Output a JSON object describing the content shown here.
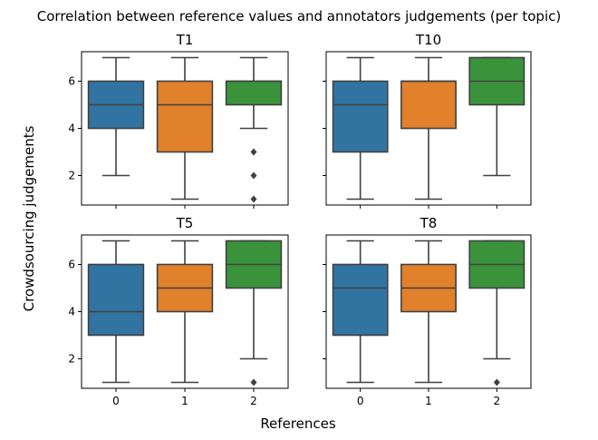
{
  "figure": {
    "title": "Correlation between reference values and annotators judgements (per topic)",
    "xlabel": "References",
    "ylabel": "Crowdsourcing judgements"
  },
  "chart_data": {
    "type": "box",
    "title": "Correlation between reference values and annotators judgements (per topic)",
    "xlabel": "References",
    "ylabel": "Crowdsourcing judgements",
    "categories": [
      "0",
      "1",
      "2"
    ],
    "colors": [
      "#3274a1",
      "#e1812c",
      "#3a923a"
    ],
    "ylim": [
      0.75,
      7.25
    ],
    "yticks": [
      2,
      4,
      6
    ],
    "grid": false,
    "panels": [
      {
        "title": "T1",
        "boxes": [
          {
            "whisker_low": 2,
            "q1": 4,
            "median": 5,
            "q3": 6,
            "whisker_high": 7,
            "outliers": []
          },
          {
            "whisker_low": 1,
            "q1": 3,
            "median": 5,
            "q3": 6,
            "whisker_high": 7,
            "outliers": []
          },
          {
            "whisker_low": 4,
            "q1": 5,
            "median": 6,
            "q3": 6,
            "whisker_high": 7,
            "outliers": [
              3,
              2,
              1
            ]
          }
        ]
      },
      {
        "title": "T10",
        "boxes": [
          {
            "whisker_low": 1,
            "q1": 3,
            "median": 5,
            "q3": 6,
            "whisker_high": 7,
            "outliers": []
          },
          {
            "whisker_low": 1,
            "q1": 4,
            "median": 6,
            "q3": 6,
            "whisker_high": 7,
            "outliers": []
          },
          {
            "whisker_low": 2,
            "q1": 5,
            "median": 6,
            "q3": 7,
            "whisker_high": 7,
            "outliers": []
          }
        ]
      },
      {
        "title": "T5",
        "boxes": [
          {
            "whisker_low": 1,
            "q1": 3,
            "median": 4,
            "q3": 6,
            "whisker_high": 7,
            "outliers": []
          },
          {
            "whisker_low": 1,
            "q1": 4,
            "median": 5,
            "q3": 6,
            "whisker_high": 7,
            "outliers": []
          },
          {
            "whisker_low": 2,
            "q1": 5,
            "median": 6,
            "q3": 7,
            "whisker_high": 7,
            "outliers": [
              1
            ]
          }
        ]
      },
      {
        "title": "T8",
        "boxes": [
          {
            "whisker_low": 1,
            "q1": 3,
            "median": 5,
            "q3": 6,
            "whisker_high": 7,
            "outliers": []
          },
          {
            "whisker_low": 1,
            "q1": 4,
            "median": 5,
            "q3": 6,
            "whisker_high": 7,
            "outliers": []
          },
          {
            "whisker_low": 2,
            "q1": 5,
            "median": 6,
            "q3": 7,
            "whisker_high": 7,
            "outliers": [
              1
            ]
          }
        ]
      }
    ]
  }
}
